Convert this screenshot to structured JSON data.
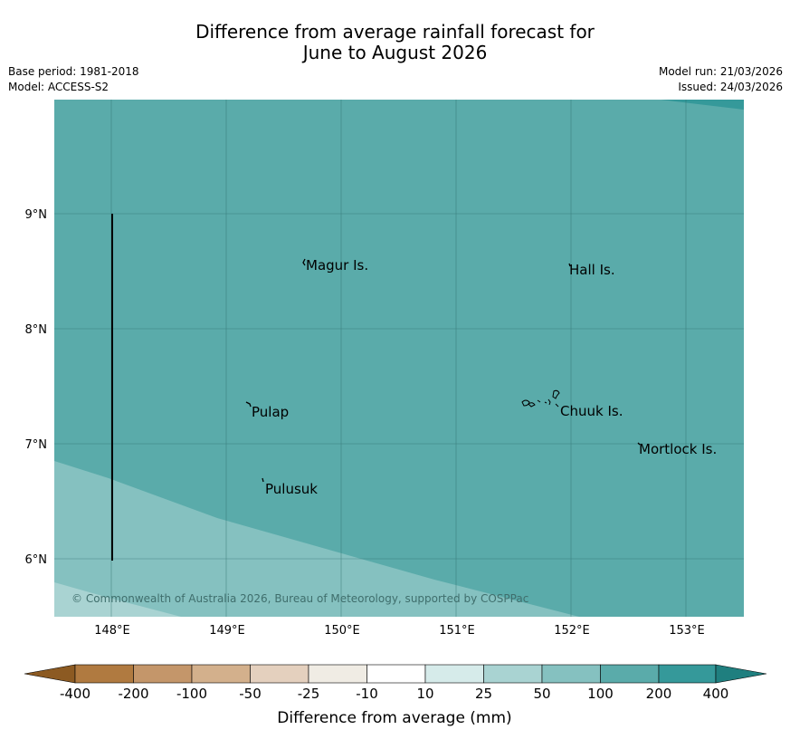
{
  "header": {
    "title_line1": "Difference from average rainfall forecast for",
    "title_line2": "June to August 2026",
    "base_period": "Base period: 1981-2018",
    "model": "Model: ACCESS-S2",
    "model_run": "Model run: 21/03/2026",
    "issued": "Issued: 24/03/2026"
  },
  "map": {
    "lat_labels": [
      "9°N",
      "8°N",
      "7°N",
      "6°N"
    ],
    "lon_labels": [
      "148°E",
      "149°E",
      "150°E",
      "151°E",
      "152°E",
      "153°E"
    ],
    "places": [
      "Magur Is.",
      "Hall Is.",
      "Pulap",
      "Chuuk Is.",
      "Mortlock Is.",
      "Pulusuk"
    ],
    "copyright": "© Commonwealth of Australia 2026, Bureau of Meteorology, supported by COSPPac",
    "colors": {
      "field_main": "#5aabaa",
      "field_25_50": "#85c1c0",
      "field_10_25": "#a9d3d2",
      "field_200_400": "#35999a"
    }
  },
  "legend": {
    "tick_labels": [
      "-400",
      "-200",
      "-100",
      "-50",
      "-25",
      "-10",
      "10",
      "25",
      "50",
      "100",
      "200",
      "400"
    ],
    "title": "Difference from average (mm)",
    "colors": [
      "#8c5a22",
      "#b07a40",
      "#c4966a",
      "#d3b08c",
      "#e4d0be",
      "#f0ece4",
      "#ffffff",
      "#d6ebea",
      "#a9d3d2",
      "#85c1c0",
      "#5aabaa",
      "#35999a",
      "#1f7f7f"
    ]
  }
}
